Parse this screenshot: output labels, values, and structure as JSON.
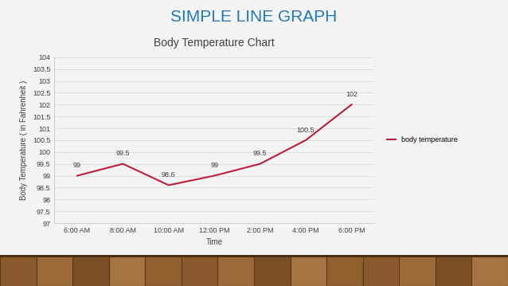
{
  "heading": "SIMPLE LINE GRAPH",
  "chart_data": {
    "type": "line",
    "title": "Body Temperature Chart",
    "x_label": "Time",
    "y_label": "Body Temperature ( in Fahrenheit )",
    "categories": [
      "6:00 AM",
      "8:00 AM",
      "10:00 AM",
      "12:00 PM",
      "2:00 PM",
      "4:00 PM",
      "6:00 PM"
    ],
    "series": [
      {
        "name": "body temperature",
        "color": "#be1e3c",
        "values": [
          99,
          99.5,
          98.6,
          99,
          99.5,
          100.5,
          102
        ]
      }
    ],
    "ylim": [
      97,
      104
    ],
    "yticks": [
      97,
      97.5,
      98,
      98.5,
      99,
      99.5,
      100,
      100.5,
      101,
      101.5,
      102,
      102.5,
      103,
      103.5,
      104
    ],
    "grid": true,
    "legend": "right",
    "data_labels": true
  }
}
